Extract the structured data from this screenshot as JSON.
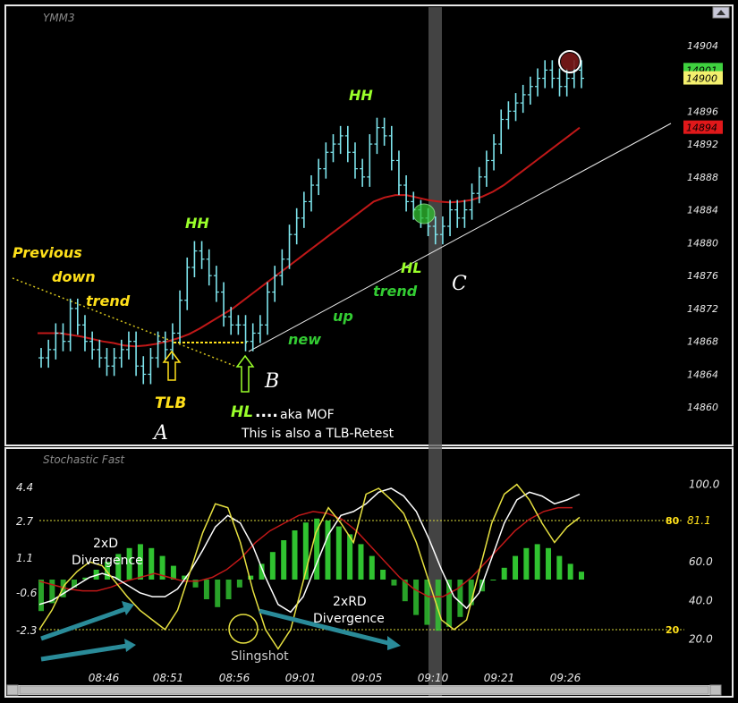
{
  "chart_data": {
    "type": "ohlc",
    "symbol": "YMM3",
    "indicator_title": "Stochastic Fast",
    "x_labels": [
      "08:46",
      "08:51",
      "08:56",
      "09:01",
      "09:05",
      "09:10",
      "09:21",
      "09:26"
    ],
    "price_axis": {
      "ticks": [
        14904,
        14900,
        14896,
        14892,
        14888,
        14884,
        14880,
        14876,
        14872,
        14868,
        14864,
        14860
      ],
      "range": [
        14856,
        14908
      ],
      "price_tags": [
        {
          "value": "14901",
          "color": "#3fd23f"
        },
        {
          "value": "14900",
          "color": "#f4f06e"
        },
        {
          "value": "14894",
          "color": "#e0181a"
        }
      ]
    },
    "stoch_axis": {
      "right_ticks": [
        "100.0",
        "80",
        "81.1",
        "60.0",
        "40.0",
        "20.0",
        "20"
      ],
      "left_ticks": [
        "4.4",
        "2.7",
        "1.1",
        "-0.6",
        "-2.3"
      ],
      "range": [
        0,
        110
      ],
      "reference_levels": [
        80,
        20
      ]
    },
    "ohlc_close": [
      14866,
      14867,
      14869,
      14868,
      14872,
      14870,
      14868,
      14867,
      14866,
      14865,
      14866,
      14867,
      14868,
      14865,
      14864,
      14866,
      14868,
      14867,
      14869,
      14873,
      14877,
      14879,
      14878,
      14876,
      14874,
      14871,
      14870,
      14870,
      14868,
      14869,
      14870,
      14874,
      14876,
      14878,
      14881,
      14883,
      14885,
      14887,
      14889,
      14891,
      14892,
      14893,
      14891,
      14889,
      14888,
      14892,
      14894,
      14893,
      14890,
      14887,
      14885,
      14884,
      14883,
      14882,
      14881,
      14882,
      14884,
      14883,
      14884,
      14886,
      14888,
      14890,
      14892,
      14895,
      14896,
      14897,
      14898,
      14899,
      14900,
      14901,
      14900,
      14899,
      14900,
      14901,
      14900
    ],
    "moving_average": [
      14869,
      14869,
      14869,
      14868.8,
      14868.6,
      14868.3,
      14868,
      14867.8,
      14867.5,
      14867.4,
      14867.5,
      14867.7,
      14868,
      14868.4,
      14868.9,
      14869.6,
      14870.4,
      14871.2,
      14872,
      14873,
      14874,
      14875,
      14876,
      14877,
      14878,
      14879,
      14880,
      14881,
      14882,
      14883,
      14884,
      14885,
      14885.5,
      14885.8,
      14885.8,
      14885.5,
      14885.2,
      14885,
      14884.9,
      14885,
      14885.2,
      14885.6,
      14886.2,
      14887,
      14888,
      14889,
      14890,
      14891,
      14892,
      14893,
      14894
    ],
    "stochastic_fast": [
      25,
      35,
      48,
      55,
      60,
      58,
      50,
      42,
      35,
      30,
      25,
      35,
      55,
      75,
      90,
      88,
      70,
      45,
      25,
      15,
      25,
      50,
      75,
      88,
      80,
      70,
      95,
      98,
      92,
      85,
      70,
      50,
      30,
      25,
      30,
      55,
      80,
      95,
      100,
      92,
      80,
      70,
      78,
      83
    ],
    "stochastic_slow": [
      38,
      40,
      44,
      48,
      52,
      54,
      52,
      48,
      44,
      42,
      42,
      46,
      55,
      66,
      78,
      84,
      80,
      68,
      52,
      38,
      34,
      42,
      58,
      74,
      84,
      86,
      90,
      96,
      98,
      94,
      86,
      72,
      56,
      42,
      36,
      44,
      62,
      80,
      92,
      96,
      94,
      90,
      92,
      95
    ],
    "stochastic_signal": [
      50,
      48,
      46,
      45,
      45,
      47,
      50,
      52,
      54,
      52,
      50,
      50,
      52,
      56,
      62,
      70,
      76,
      80,
      84,
      86,
      85,
      82,
      76,
      68,
      60,
      52,
      46,
      42,
      42,
      46,
      52,
      60,
      68,
      76,
      82,
      86,
      88,
      88
    ],
    "histogram": [
      -1.6,
      -1.2,
      -0.9,
      -0.4,
      0.1,
      0.5,
      0.9,
      1.3,
      1.6,
      1.8,
      1.6,
      1.2,
      0.7,
      0.2,
      -0.4,
      -1.0,
      -1.4,
      -1.0,
      -0.4,
      0.2,
      0.8,
      1.4,
      2.0,
      2.5,
      2.9,
      3.1,
      3.0,
      2.7,
      2.3,
      1.8,
      1.2,
      0.5,
      -0.3,
      -1.1,
      -1.8,
      -2.3,
      -2.6,
      -2.4,
      -1.9,
      -1.3,
      -0.6,
      0.0,
      0.6,
      1.2,
      1.6,
      1.8,
      1.6,
      1.2,
      0.8,
      0.4
    ]
  },
  "annotations": {
    "previous": "Previous",
    "down": "down",
    "trend_left": "trend",
    "hh_1": "HH",
    "hh_2": "HH",
    "hl_right": "HL",
    "trend_right": "trend",
    "up": "up",
    "new": "new",
    "tlb": "TLB",
    "hl_bottom": "HL",
    "ellipsis": "....",
    "aka_mof": "aka MOF",
    "tlb_retest": "This is also a TLB-Retest",
    "point_a": "A",
    "point_b": "B",
    "point_c": "C",
    "divergence_2xd_1": "2xD",
    "divergence_2xd_2": "Divergence",
    "divergence_2xrd_1": "2xRD",
    "divergence_2xrd_2": "Divergence",
    "slingshot": "Slingshot"
  },
  "colors": {
    "price_bars": "#7fe6ee",
    "moving_average": "#c01818",
    "trend_line_up": "#e8e8e8",
    "trend_line_down": "#d4c21c",
    "histogram_pos": "#33cc33",
    "histogram_neg": "#33cc33",
    "stoch_fast": "#e6e040",
    "stoch_slow": "#ffffff",
    "stoch_signal": "#c01818",
    "label_yellow": "#ffe01a",
    "label_green": "#33cc33",
    "label_lime": "#9aff2a",
    "arrow_teal": "#2a8b99"
  }
}
